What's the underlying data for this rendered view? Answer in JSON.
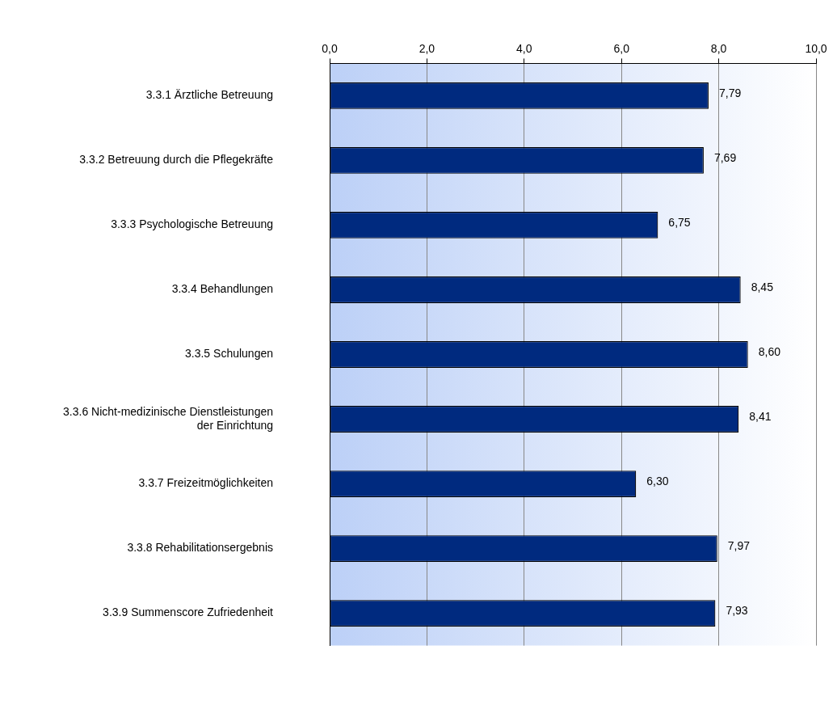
{
  "chart_data": {
    "type": "bar",
    "orientation": "horizontal",
    "categories": [
      "3.3.1 Ärztliche Betreuung",
      "3.3.2 Betreuung durch die Pflegekräfte",
      "3.3.3 Psychologische Betreuung",
      "3.3.4 Behandlungen",
      "3.3.5 Schulungen",
      "3.3.6 Nicht-medizinische Dienstleistungen\nder Einrichtung",
      "3.3.7 Freizeitmöglichkeiten",
      "3.3.8 Rehabilitationsergebnis",
      "3.3.9 Summenscore Zufriedenheit"
    ],
    "values": [
      7.79,
      7.69,
      6.75,
      8.45,
      8.6,
      8.41,
      6.3,
      7.97,
      7.93
    ],
    "value_labels": [
      "7,79",
      "7,69",
      "6,75",
      "8,45",
      "8,60",
      "8,41",
      "6,30",
      "7,97",
      "7,93"
    ],
    "color": "#002a7f",
    "xlim": [
      0,
      10
    ],
    "xticks": [
      {
        "value": 0,
        "label": "0,0"
      },
      {
        "value": 2,
        "label": "2,0"
      },
      {
        "value": 4,
        "label": "4,0"
      },
      {
        "value": 6,
        "label": "6,0"
      },
      {
        "value": 8,
        "label": "8,0"
      },
      {
        "value": 10,
        "label": "10,0"
      }
    ],
    "grid": "x",
    "legend": false
  }
}
